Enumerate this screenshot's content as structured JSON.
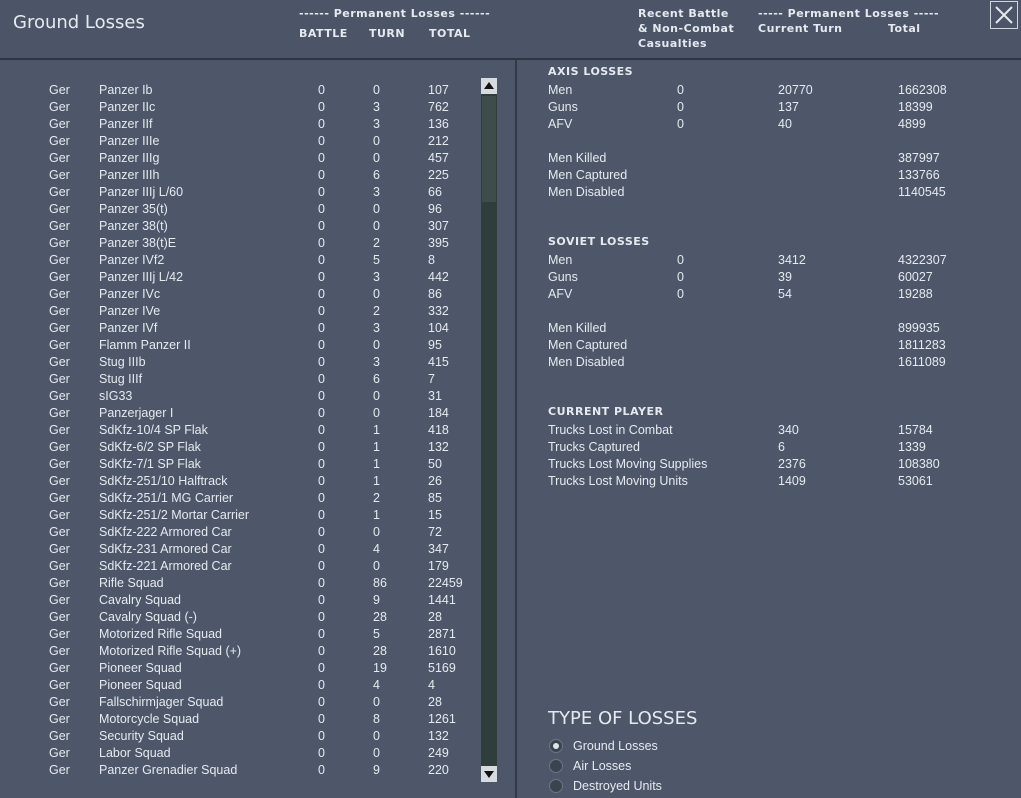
{
  "header": {
    "title": "Ground Losses",
    "left_group": "------ Permanent Losses ------",
    "left_columns": [
      "BATTLE",
      "TURN",
      "TOTAL"
    ],
    "recent_label": [
      "Recent Battle",
      "& Non-Combat",
      "Casualties"
    ],
    "right_group": "----- Permanent Losses -----",
    "right_columns": [
      "Current Turn",
      "Total"
    ]
  },
  "units": {
    "rows": [
      [
        "Ger",
        "Panzer Ib",
        0,
        0,
        107
      ],
      [
        "Ger",
        "Panzer IIc",
        0,
        3,
        762
      ],
      [
        "Ger",
        "Panzer IIf",
        0,
        3,
        136
      ],
      [
        "Ger",
        "Panzer IIIe",
        0,
        0,
        212
      ],
      [
        "Ger",
        "Panzer IIIg",
        0,
        0,
        457
      ],
      [
        "Ger",
        "Panzer IIIh",
        0,
        6,
        225
      ],
      [
        "Ger",
        "Panzer IIIj L/60",
        0,
        3,
        66
      ],
      [
        "Ger",
        "Panzer 35(t)",
        0,
        0,
        96
      ],
      [
        "Ger",
        "Panzer 38(t)",
        0,
        0,
        307
      ],
      [
        "Ger",
        "Panzer 38(t)E",
        0,
        2,
        395
      ],
      [
        "Ger",
        "Panzer IVf2",
        0,
        5,
        8
      ],
      [
        "Ger",
        "Panzer IIIj L/42",
        0,
        3,
        442
      ],
      [
        "Ger",
        "Panzer IVc",
        0,
        0,
        86
      ],
      [
        "Ger",
        "Panzer IVe",
        0,
        2,
        332
      ],
      [
        "Ger",
        "Panzer IVf",
        0,
        3,
        104
      ],
      [
        "Ger",
        "Flamm Panzer II",
        0,
        0,
        95
      ],
      [
        "Ger",
        "Stug IIIb",
        0,
        3,
        415
      ],
      [
        "Ger",
        "Stug IIIf",
        0,
        6,
        7
      ],
      [
        "Ger",
        "sIG33",
        0,
        0,
        31
      ],
      [
        "Ger",
        "Panzerjager I",
        0,
        0,
        184
      ],
      [
        "Ger",
        "SdKfz-10/4 SP Flak",
        0,
        1,
        418
      ],
      [
        "Ger",
        "SdKfz-6/2 SP Flak",
        0,
        1,
        132
      ],
      [
        "Ger",
        "SdKfz-7/1 SP Flak",
        0,
        1,
        50
      ],
      [
        "Ger",
        "SdKfz-251/10 Halftrack",
        0,
        1,
        26
      ],
      [
        "Ger",
        "SdKfz-251/1 MG Carrier",
        0,
        2,
        85
      ],
      [
        "Ger",
        "SdKfz-251/2 Mortar Carrier",
        0,
        1,
        15
      ],
      [
        "Ger",
        "SdKfz-222 Armored Car",
        0,
        0,
        72
      ],
      [
        "Ger",
        "SdKfz-231 Armored Car",
        0,
        4,
        347
      ],
      [
        "Ger",
        "SdKfz-221 Armored Car",
        0,
        0,
        179
      ],
      [
        "Ger",
        "Rifle Squad",
        0,
        86,
        22459
      ],
      [
        "Ger",
        "Cavalry Squad",
        0,
        9,
        1441
      ],
      [
        "Ger",
        "Cavalry Squad (-)",
        0,
        28,
        28
      ],
      [
        "Ger",
        "Motorized Rifle Squad",
        0,
        5,
        2871
      ],
      [
        "Ger",
        "Motorized Rifle Squad (+)",
        0,
        28,
        1610
      ],
      [
        "Ger",
        "Pioneer Squad",
        0,
        19,
        5169
      ],
      [
        "Ger",
        "Pioneer Squad",
        0,
        4,
        4
      ],
      [
        "Ger",
        "Fallschirmjager Squad",
        0,
        0,
        28
      ],
      [
        "Ger",
        "Motorcycle Squad",
        0,
        8,
        1261
      ],
      [
        "Ger",
        "Security Squad",
        0,
        0,
        132
      ],
      [
        "Ger",
        "Labor Squad",
        0,
        0,
        249
      ],
      [
        "Ger",
        "Panzer Grenadier Squad",
        0,
        9,
        220
      ]
    ]
  },
  "axis": {
    "title": "AXIS LOSSES",
    "rows": [
      [
        "Men",
        0,
        20770,
        1662308
      ],
      [
        "Guns",
        0,
        137,
        18399
      ],
      [
        "AFV",
        0,
        40,
        4899
      ]
    ],
    "casualties": [
      [
        "Men Killed",
        387997
      ],
      [
        "Men Captured",
        133766
      ],
      [
        "Men Disabled",
        1140545
      ]
    ]
  },
  "soviet": {
    "title": "SOVIET LOSSES",
    "rows": [
      [
        "Men",
        0,
        3412,
        4322307
      ],
      [
        "Guns",
        0,
        39,
        60027
      ],
      [
        "AFV",
        0,
        54,
        19288
      ]
    ],
    "casualties": [
      [
        "Men Killed",
        899935
      ],
      [
        "Men Captured",
        1811283
      ],
      [
        "Men Disabled",
        1611089
      ]
    ]
  },
  "player": {
    "title": "CURRENT PLAYER",
    "rows": [
      [
        "Trucks Lost in Combat",
        340,
        15784
      ],
      [
        "Trucks Captured",
        6,
        1339
      ],
      [
        "Trucks Lost Moving Supplies",
        2376,
        108380
      ],
      [
        "Trucks Lost Moving Units",
        1409,
        53061
      ]
    ]
  },
  "type_of_losses": {
    "title": "TYPE OF LOSSES",
    "options": [
      "Ground Losses",
      "Air Losses",
      "Destroyed Units"
    ]
  }
}
